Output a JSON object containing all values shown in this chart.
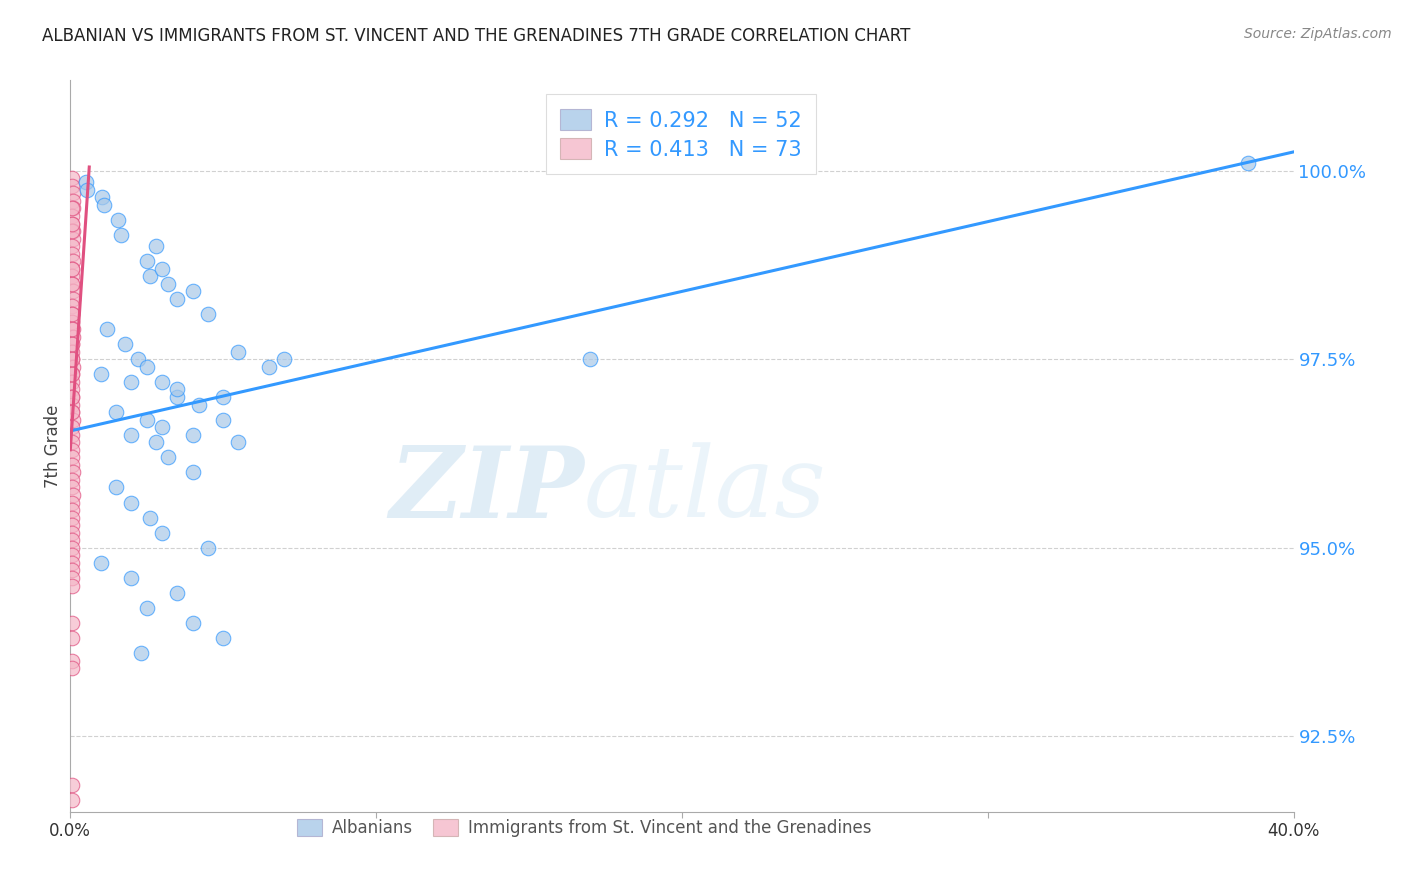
{
  "title": "ALBANIAN VS IMMIGRANTS FROM ST. VINCENT AND THE GRENADINES 7TH GRADE CORRELATION CHART",
  "source": "Source: ZipAtlas.com",
  "ylabel": "7th Grade",
  "xlim": [
    0.0,
    40.0
  ],
  "ylim": [
    91.5,
    101.2
  ],
  "yticks": [
    92.5,
    95.0,
    97.5,
    100.0
  ],
  "ytick_labels": [
    "92.5%",
    "95.0%",
    "97.5%",
    "100.0%"
  ],
  "xtick_positions": [
    0.0,
    10.0,
    20.0,
    30.0,
    40.0
  ],
  "xtick_labels": [
    "0.0%",
    "",
    "",
    "",
    "40.0%"
  ],
  "legend_blue_r": "0.292",
  "legend_blue_n": "52",
  "legend_pink_r": "0.413",
  "legend_pink_n": "73",
  "blue_color": "#a8c8e8",
  "pink_color": "#f4b8c8",
  "line_blue_color": "#3399ff",
  "line_pink_color": "#e05080",
  "watermark_zip": "ZIP",
  "watermark_atlas": "atlas",
  "blue_scatter_x": [
    0.5,
    0.55,
    1.05,
    1.1,
    1.55,
    1.65,
    2.5,
    2.6,
    2.8,
    3.0,
    3.2,
    3.5,
    4.0,
    4.5,
    1.2,
    1.8,
    2.2,
    2.5,
    3.0,
    3.5,
    4.2,
    5.0,
    2.0,
    2.8,
    3.2,
    4.0,
    1.5,
    2.0,
    2.6,
    3.0,
    4.5,
    5.5,
    6.5,
    1.0,
    2.0,
    3.5,
    5.0,
    1.5,
    2.5,
    3.0,
    4.0,
    5.5,
    7.0,
    1.0,
    2.0,
    3.5,
    2.5,
    4.0,
    5.0,
    17.0,
    38.5,
    2.3
  ],
  "blue_scatter_y": [
    99.85,
    99.75,
    99.65,
    99.55,
    99.35,
    99.15,
    98.8,
    98.6,
    99.0,
    98.7,
    98.5,
    98.3,
    98.4,
    98.1,
    97.9,
    97.7,
    97.5,
    97.4,
    97.2,
    97.0,
    96.9,
    96.7,
    96.5,
    96.4,
    96.2,
    96.0,
    95.8,
    95.6,
    95.4,
    95.2,
    95.0,
    97.6,
    97.4,
    97.3,
    97.2,
    97.1,
    97.0,
    96.8,
    96.7,
    96.6,
    96.5,
    96.4,
    97.5,
    94.8,
    94.6,
    94.4,
    94.2,
    94.0,
    93.8,
    97.5,
    100.1,
    93.6
  ],
  "pink_scatter_x": [
    0.05,
    0.07,
    0.08,
    0.09,
    0.1,
    0.05,
    0.06,
    0.08,
    0.09,
    0.05,
    0.07,
    0.08,
    0.05,
    0.06,
    0.07,
    0.08,
    0.1,
    0.05,
    0.06,
    0.07,
    0.08,
    0.09,
    0.05,
    0.06,
    0.07,
    0.08,
    0.05,
    0.06,
    0.07,
    0.05,
    0.06,
    0.07,
    0.08,
    0.05,
    0.06,
    0.07,
    0.05,
    0.06,
    0.07,
    0.08,
    0.05,
    0.06,
    0.08,
    0.05,
    0.06,
    0.05,
    0.06,
    0.07,
    0.05,
    0.06,
    0.07,
    0.05,
    0.06,
    0.05,
    0.06,
    0.05,
    0.06,
    0.05,
    0.06,
    0.05,
    0.06,
    0.05,
    0.06,
    0.07,
    0.05,
    0.06,
    0.07,
    0.05,
    0.06,
    0.05,
    0.06,
    0.05,
    0.05
  ],
  "pink_scatter_y": [
    99.9,
    99.8,
    99.7,
    99.6,
    99.5,
    99.4,
    99.3,
    99.2,
    99.1,
    99.0,
    98.9,
    98.8,
    98.7,
    98.6,
    98.5,
    98.4,
    98.3,
    98.2,
    98.1,
    98.0,
    97.9,
    97.8,
    97.7,
    97.6,
    97.5,
    97.4,
    97.3,
    97.2,
    97.1,
    97.0,
    96.9,
    96.8,
    96.7,
    96.6,
    96.5,
    96.4,
    96.3,
    96.2,
    96.1,
    96.0,
    95.9,
    95.8,
    95.7,
    95.6,
    95.5,
    95.4,
    95.3,
    95.2,
    95.1,
    95.0,
    94.9,
    94.8,
    94.7,
    94.6,
    94.5,
    94.0,
    93.8,
    93.5,
    93.4,
    96.8,
    97.0,
    97.3,
    97.5,
    97.7,
    97.9,
    98.1,
    98.5,
    98.7,
    99.2,
    99.3,
    99.5,
    91.85,
    91.65
  ],
  "blue_line_x": [
    0.0,
    40.0
  ],
  "blue_line_y": [
    96.55,
    100.25
  ],
  "pink_line_x": [
    0.0,
    0.62
  ],
  "pink_line_y": [
    96.3,
    100.05
  ]
}
